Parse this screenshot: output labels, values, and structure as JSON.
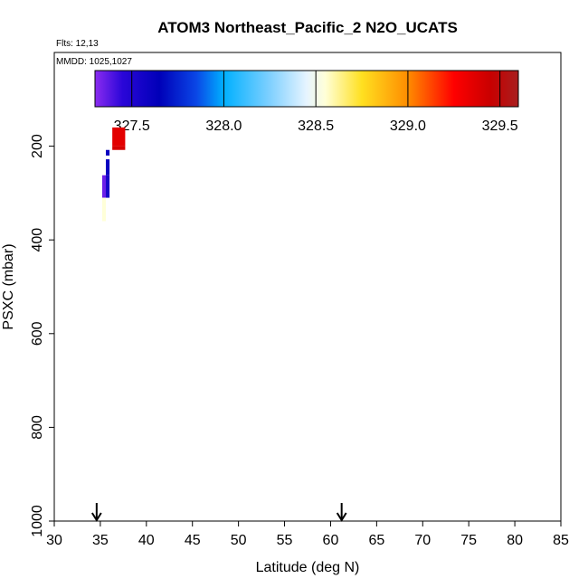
{
  "chart_data": {
    "type": "heatmap",
    "title": "ATOM3 Northeast_Pacific_2 N2O_UCATS",
    "flights_label": "Flts: 12,13",
    "dates_label": "MMDD: 1025,1027",
    "xlabel": "Latitude (deg N)",
    "ylabel": "PSXC (mbar)",
    "xlim": [
      30,
      85
    ],
    "ylim": [
      1000,
      0
    ],
    "x_ticks": [
      30,
      35,
      40,
      45,
      50,
      55,
      60,
      65,
      70,
      75,
      80,
      85
    ],
    "y_ticks": [
      200,
      400,
      600,
      800,
      1000
    ],
    "grid": false,
    "colorbar": {
      "range": [
        327.3,
        329.6
      ],
      "ticks": [
        327.5,
        328.0,
        328.5,
        329.0,
        329.5
      ],
      "tick_labels": [
        "327.5",
        "328.0",
        "328.5",
        "329.0",
        "329.5"
      ],
      "stops": [
        {
          "v": 327.3,
          "c": "#8b2cf0"
        },
        {
          "v": 327.45,
          "c": "#2a06d8"
        },
        {
          "v": 327.65,
          "c": "#0000b8"
        },
        {
          "v": 327.85,
          "c": "#0a46e6"
        },
        {
          "v": 328.0,
          "c": "#00b0ff"
        },
        {
          "v": 328.25,
          "c": "#7fd0ff"
        },
        {
          "v": 328.45,
          "c": "#e6f4ff"
        },
        {
          "v": 328.55,
          "c": "#ffffd8"
        },
        {
          "v": 328.75,
          "c": "#ffe020"
        },
        {
          "v": 329.0,
          "c": "#ff8c00"
        },
        {
          "v": 329.25,
          "c": "#ff0000"
        },
        {
          "v": 329.45,
          "c": "#c80000"
        },
        {
          "v": 329.6,
          "c": "#a81e1e"
        }
      ]
    },
    "cells": [
      {
        "lat0": 36.3,
        "lat1": 37.7,
        "p0": 160,
        "p1": 200,
        "value": 329.35
      },
      {
        "lat0": 36.3,
        "lat1": 37.7,
        "p0": 200,
        "p1": 208,
        "value": 329.4
      },
      {
        "lat0": 35.6,
        "lat1": 36.0,
        "p0": 208,
        "p1": 220,
        "value": 327.6
      },
      {
        "lat0": 35.6,
        "lat1": 36.0,
        "p0": 228,
        "p1": 262,
        "value": 327.6
      },
      {
        "lat0": 35.2,
        "lat1": 35.6,
        "p0": 262,
        "p1": 310,
        "value": 327.35
      },
      {
        "lat0": 35.6,
        "lat1": 36.0,
        "p0": 262,
        "p1": 310,
        "value": 327.55
      },
      {
        "lat0": 35.2,
        "lat1": 35.6,
        "p0": 310,
        "p1": 360,
        "value": 328.55
      }
    ],
    "arrows_lat": [
      34.6,
      61.2
    ]
  }
}
